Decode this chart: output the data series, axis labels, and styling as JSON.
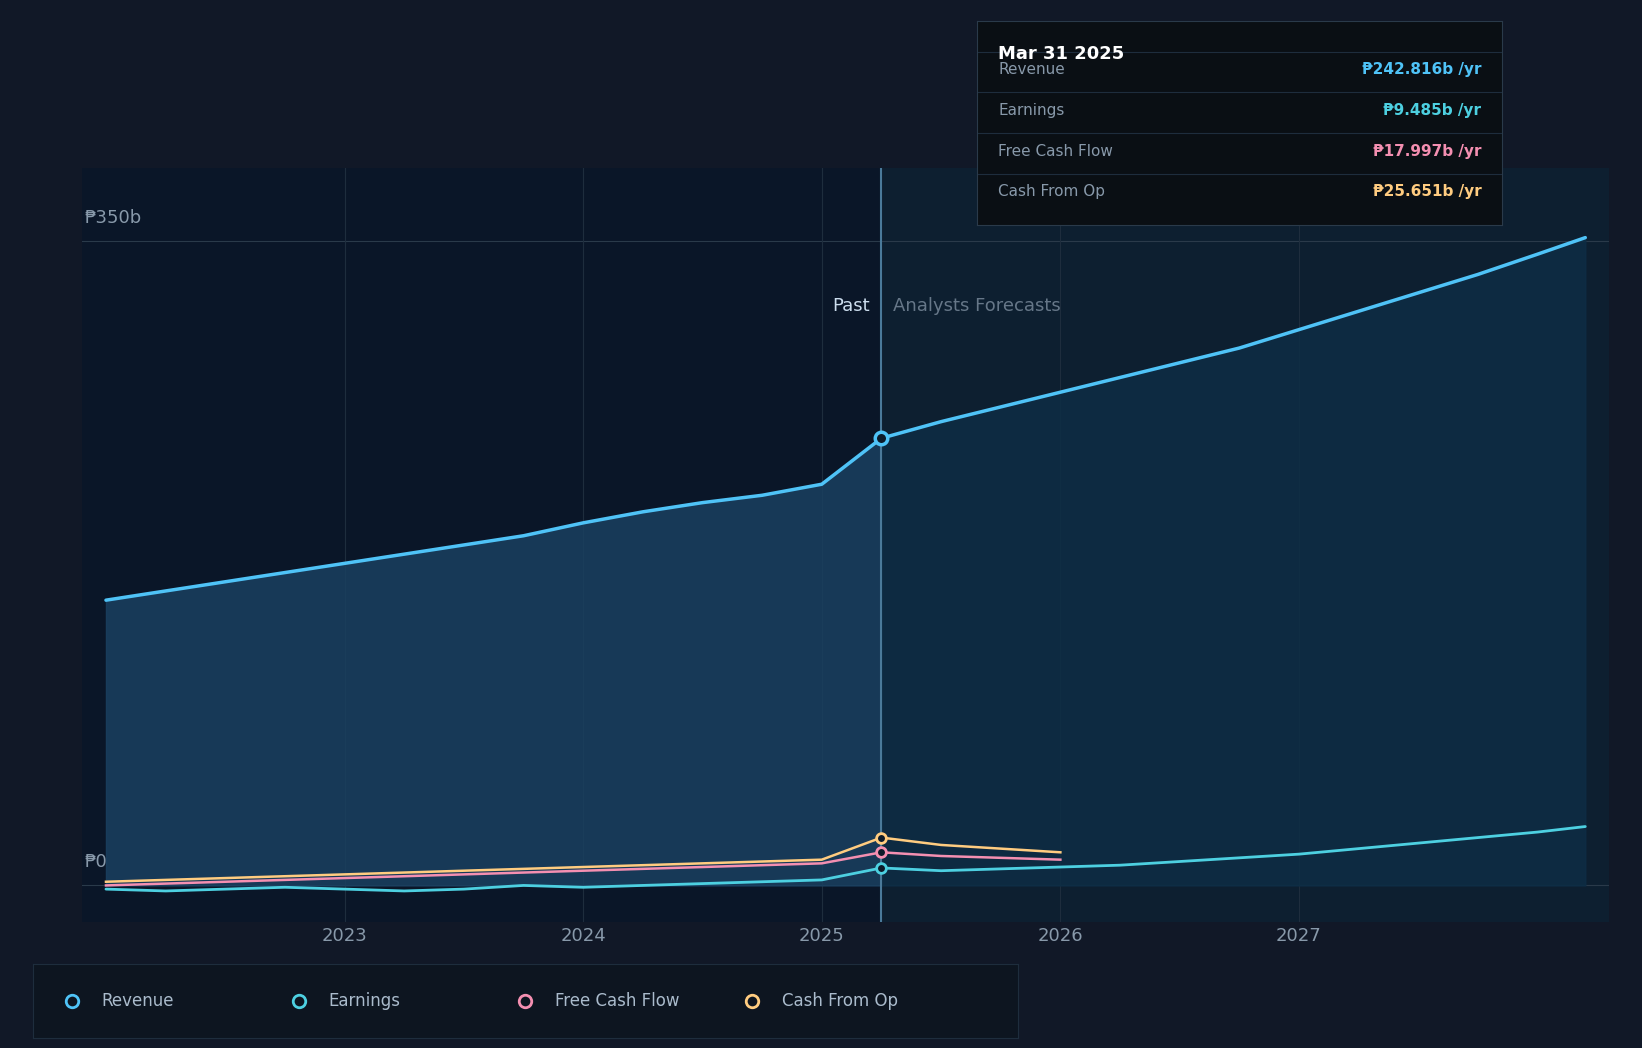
{
  "bg_color": "#111827",
  "plot_bg_color": "#0d1b2a",
  "plot_bg_past": "#0a1628",
  "plot_bg_forecast": "#0d1f30",
  "divider_x": 2025.25,
  "ylim": [
    -20,
    390
  ],
  "xlim": [
    2021.9,
    2028.3
  ],
  "yticks": [
    0,
    350
  ],
  "ytick_labels": [
    "₱0",
    "₱350b"
  ],
  "xticks": [
    2023,
    2024,
    2025,
    2026,
    2027
  ],
  "xtick_labels": [
    "2023",
    "2024",
    "2025",
    "2026",
    "2027"
  ],
  "past_label": "Past",
  "forecast_label": "Analysts Forecasts",
  "tooltip_title": "Mar 31 2025",
  "tooltip_items": [
    {
      "label": "Revenue",
      "value": "₱242.816b /yr",
      "color": "#4fc3f7"
    },
    {
      "label": "Earnings",
      "value": "₱9.485b /yr",
      "color": "#4dd0e1"
    },
    {
      "label": "Free Cash Flow",
      "value": "₱17.997b /yr",
      "color": "#f48fb1"
    },
    {
      "label": "Cash From Op",
      "value": "₱25.651b /yr",
      "color": "#ffcc80"
    }
  ],
  "series": {
    "revenue": {
      "color": "#4fc3f7",
      "x": [
        2022.0,
        2022.25,
        2022.5,
        2022.75,
        2023.0,
        2023.25,
        2023.5,
        2023.75,
        2024.0,
        2024.25,
        2024.5,
        2024.75,
        2025.0,
        2025.25,
        2025.5,
        2025.75,
        2026.0,
        2026.25,
        2026.5,
        2026.75,
        2027.0,
        2027.25,
        2027.5,
        2027.75,
        2028.0,
        2028.2
      ],
      "y": [
        155,
        160,
        165,
        170,
        175,
        180,
        185,
        190,
        197,
        203,
        208,
        212,
        218,
        243,
        252,
        260,
        268,
        276,
        284,
        292,
        302,
        312,
        322,
        332,
        343,
        352
      ]
    },
    "earnings": {
      "color": "#4dd0e1",
      "x": [
        2022.0,
        2022.25,
        2022.5,
        2022.75,
        2023.0,
        2023.25,
        2023.5,
        2023.75,
        2024.0,
        2024.25,
        2024.5,
        2024.75,
        2025.0,
        2025.25,
        2025.5,
        2025.75,
        2026.0,
        2026.25,
        2026.5,
        2026.75,
        2027.0,
        2027.25,
        2027.5,
        2027.75,
        2028.0,
        2028.2
      ],
      "y": [
        -2,
        -3,
        -2,
        -1,
        -2,
        -3,
        -2,
        0,
        -1,
        0,
        1,
        2,
        3,
        9.5,
        8,
        9,
        10,
        11,
        13,
        15,
        17,
        20,
        23,
        26,
        29,
        32
      ]
    },
    "fcf": {
      "color": "#f48fb1",
      "x": [
        2022.0,
        2022.25,
        2022.5,
        2022.75,
        2023.0,
        2023.25,
        2023.5,
        2023.75,
        2024.0,
        2024.25,
        2024.5,
        2024.75,
        2025.0,
        2025.25,
        2025.5,
        2025.75,
        2026.0
      ],
      "y": [
        0,
        1,
        2,
        3,
        4,
        5,
        6,
        7,
        8,
        9,
        10,
        11,
        12,
        18,
        16,
        15,
        14
      ]
    },
    "cashfromop": {
      "color": "#ffcc80",
      "x": [
        2022.0,
        2022.25,
        2022.5,
        2022.75,
        2023.0,
        2023.25,
        2023.5,
        2023.75,
        2024.0,
        2024.25,
        2024.5,
        2024.75,
        2025.0,
        2025.25,
        2025.5,
        2025.75,
        2026.0
      ],
      "y": [
        2,
        3,
        4,
        5,
        6,
        7,
        8,
        9,
        10,
        11,
        12,
        13,
        14,
        26,
        22,
        20,
        18
      ]
    }
  },
  "legend_items": [
    {
      "label": "Revenue",
      "color": "#4fc3f7"
    },
    {
      "label": "Earnings",
      "color": "#4dd0e1"
    },
    {
      "label": "Free Cash Flow",
      "color": "#f48fb1"
    },
    {
      "label": "Cash From Op",
      "color": "#ffcc80"
    }
  ]
}
